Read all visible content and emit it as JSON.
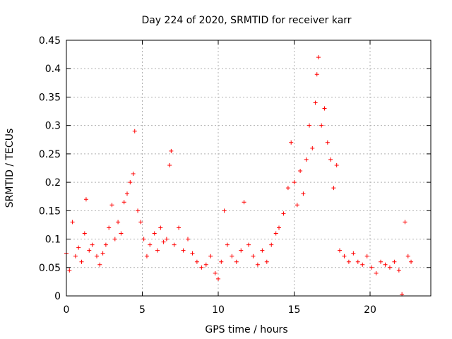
{
  "chart_data": {
    "type": "scatter",
    "title": "Day 224 of 2020, SRMTID for receiver karr",
    "xlabel": "GPS time / hours",
    "ylabel": "SRMTID / TECUs",
    "xlim": [
      0,
      24
    ],
    "ylim": [
      0,
      0.45
    ],
    "x_ticks": [
      0,
      5,
      10,
      15,
      20
    ],
    "y_ticks": [
      0,
      0.05,
      0.1,
      0.15,
      0.2,
      0.25,
      0.3,
      0.35,
      0.4,
      0.45
    ],
    "x_tick_labels": [
      "0",
      "5",
      "10",
      "15",
      "20"
    ],
    "y_tick_labels": [
      "0",
      "0.05",
      "0.1",
      "0.15",
      "0.2",
      "0.25",
      "0.3",
      "0.35",
      "0.4",
      "0.45"
    ],
    "grid": true,
    "marker": "+",
    "series": [
      {
        "name": "SRMTID",
        "color": "#ff0000",
        "points": [
          [
            0.0,
            0.075
          ],
          [
            0.2,
            0.045
          ],
          [
            0.4,
            0.13
          ],
          [
            0.6,
            0.07
          ],
          [
            0.8,
            0.085
          ],
          [
            1.0,
            0.06
          ],
          [
            1.2,
            0.11
          ],
          [
            1.3,
            0.17
          ],
          [
            1.5,
            0.08
          ],
          [
            1.7,
            0.09
          ],
          [
            2.0,
            0.07
          ],
          [
            2.2,
            0.055
          ],
          [
            2.4,
            0.075
          ],
          [
            2.6,
            0.09
          ],
          [
            2.8,
            0.12
          ],
          [
            3.0,
            0.16
          ],
          [
            3.2,
            0.1
          ],
          [
            3.4,
            0.13
          ],
          [
            3.6,
            0.11
          ],
          [
            3.8,
            0.165
          ],
          [
            4.0,
            0.18
          ],
          [
            4.2,
            0.2
          ],
          [
            4.4,
            0.215
          ],
          [
            4.5,
            0.29
          ],
          [
            4.7,
            0.15
          ],
          [
            4.9,
            0.13
          ],
          [
            5.1,
            0.1
          ],
          [
            5.3,
            0.07
          ],
          [
            5.5,
            0.09
          ],
          [
            5.8,
            0.11
          ],
          [
            6.0,
            0.08
          ],
          [
            6.2,
            0.12
          ],
          [
            6.4,
            0.095
          ],
          [
            6.6,
            0.1
          ],
          [
            6.8,
            0.23
          ],
          [
            6.9,
            0.255
          ],
          [
            7.1,
            0.09
          ],
          [
            7.4,
            0.12
          ],
          [
            7.7,
            0.08
          ],
          [
            8.0,
            0.1
          ],
          [
            8.3,
            0.075
          ],
          [
            8.6,
            0.06
          ],
          [
            8.9,
            0.05
          ],
          [
            9.2,
            0.055
          ],
          [
            9.5,
            0.07
          ],
          [
            9.8,
            0.04
          ],
          [
            10.0,
            0.03
          ],
          [
            10.2,
            0.06
          ],
          [
            10.4,
            0.15
          ],
          [
            10.6,
            0.09
          ],
          [
            10.9,
            0.07
          ],
          [
            11.2,
            0.06
          ],
          [
            11.5,
            0.08
          ],
          [
            11.7,
            0.165
          ],
          [
            12.0,
            0.09
          ],
          [
            12.3,
            0.07
          ],
          [
            12.6,
            0.055
          ],
          [
            12.9,
            0.08
          ],
          [
            13.2,
            0.06
          ],
          [
            13.5,
            0.09
          ],
          [
            13.8,
            0.11
          ],
          [
            14.0,
            0.12
          ],
          [
            14.3,
            0.145
          ],
          [
            14.6,
            0.19
          ],
          [
            14.8,
            0.27
          ],
          [
            15.0,
            0.2
          ],
          [
            15.2,
            0.16
          ],
          [
            15.4,
            0.22
          ],
          [
            15.6,
            0.18
          ],
          [
            15.8,
            0.24
          ],
          [
            16.0,
            0.3
          ],
          [
            16.2,
            0.26
          ],
          [
            16.4,
            0.34
          ],
          [
            16.5,
            0.39
          ],
          [
            16.6,
            0.42
          ],
          [
            16.8,
            0.3
          ],
          [
            17.0,
            0.33
          ],
          [
            17.2,
            0.27
          ],
          [
            17.4,
            0.24
          ],
          [
            17.6,
            0.19
          ],
          [
            17.8,
            0.23
          ],
          [
            18.0,
            0.08
          ],
          [
            18.3,
            0.07
          ],
          [
            18.6,
            0.06
          ],
          [
            18.9,
            0.075
          ],
          [
            19.2,
            0.06
          ],
          [
            19.5,
            0.055
          ],
          [
            19.8,
            0.07
          ],
          [
            20.1,
            0.05
          ],
          [
            20.4,
            0.04
          ],
          [
            20.7,
            0.06
          ],
          [
            21.0,
            0.055
          ],
          [
            21.3,
            0.05
          ],
          [
            21.6,
            0.06
          ],
          [
            21.9,
            0.045
          ],
          [
            22.1,
            0.003
          ],
          [
            22.3,
            0.13
          ],
          [
            22.5,
            0.07
          ],
          [
            22.7,
            0.06
          ]
        ]
      }
    ]
  }
}
